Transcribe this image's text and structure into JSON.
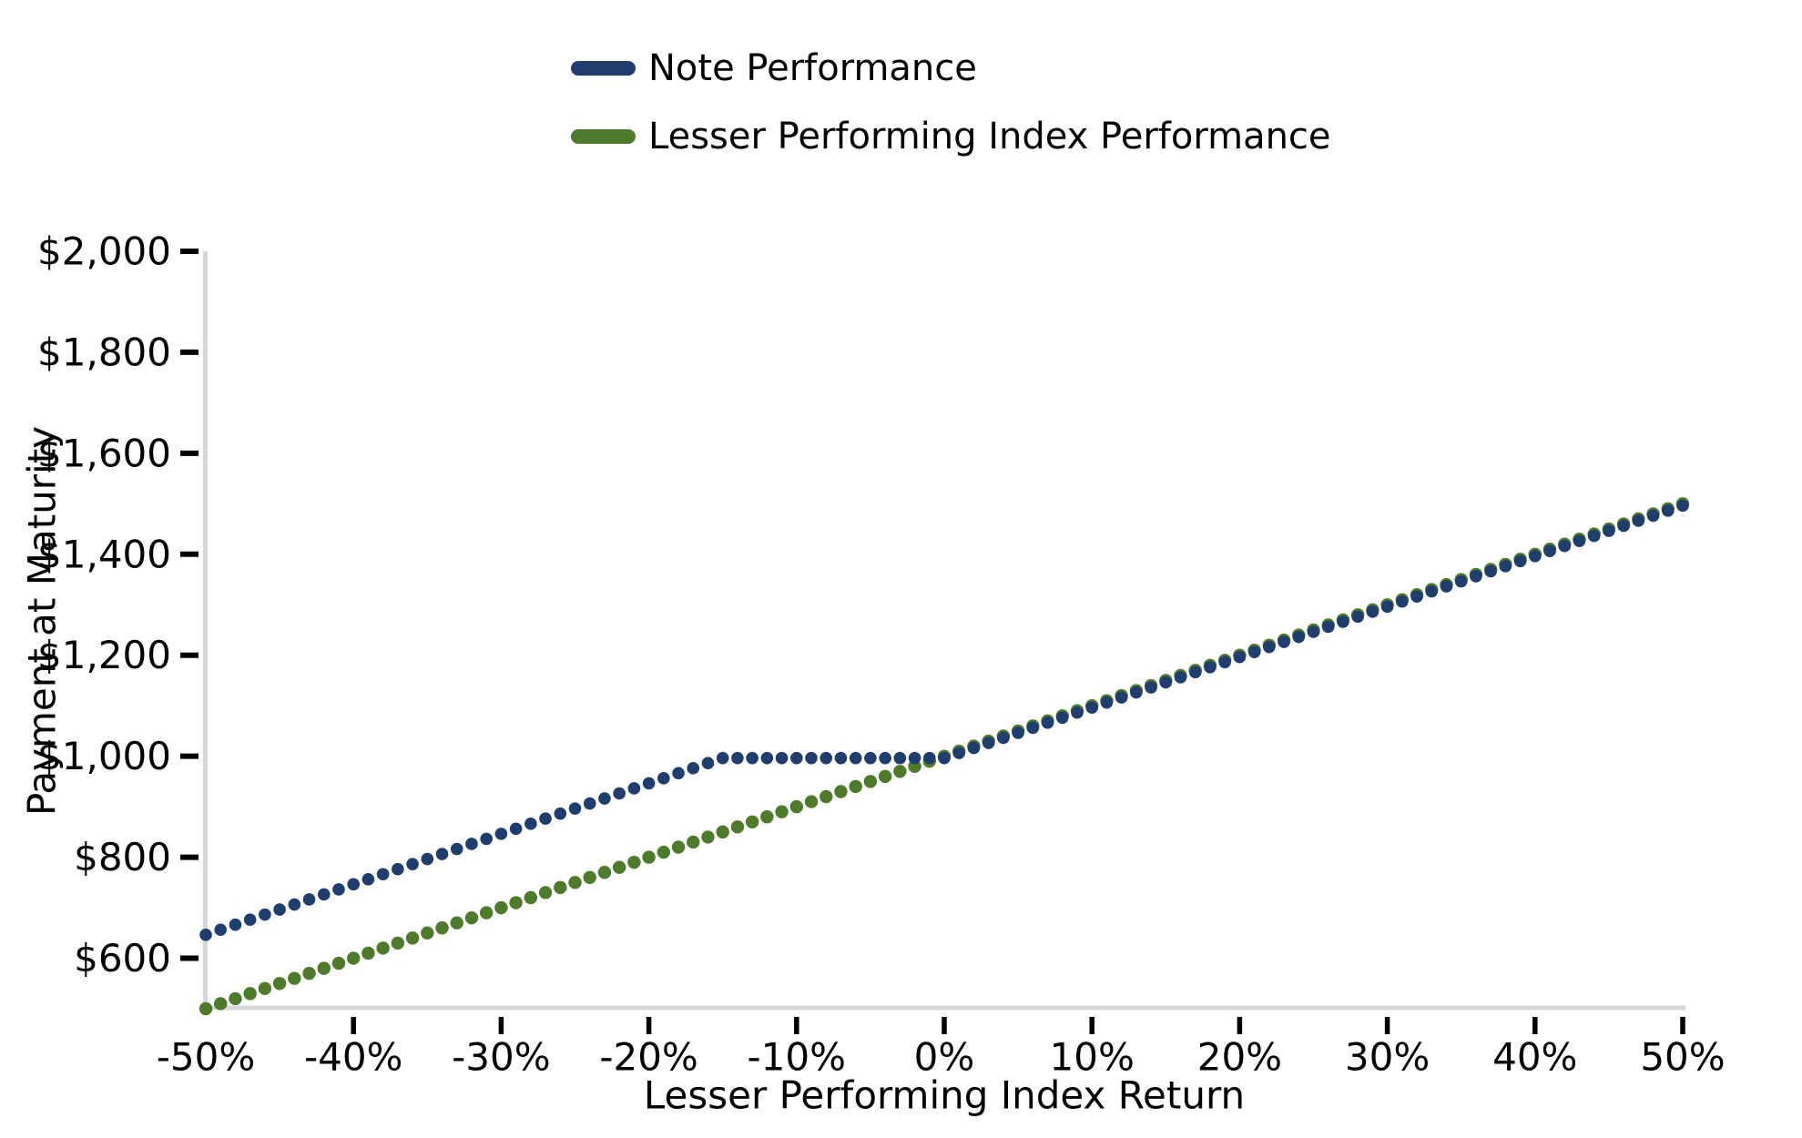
{
  "page": {
    "background": "#ffffff"
  },
  "colors": {
    "axis_spine": "#d5d7da",
    "tick_mark": "#000000",
    "text": "#000000",
    "note_line": "#1f3e6d",
    "index_line": "#4e7b2b"
  },
  "chart_data": {
    "type": "line",
    "title": "",
    "xlabel": "Lesser Performing Index Return",
    "ylabel": "Payment at Maturity",
    "xlim": [
      -50,
      50
    ],
    "ylim": [
      500,
      2000
    ],
    "grid": false,
    "legend_position": "top-center",
    "x_tick_values": [
      -50,
      -40,
      -30,
      -20,
      -10,
      0,
      10,
      20,
      30,
      40,
      50
    ],
    "x_tick_labels": [
      "-50%",
      "-40%",
      "-30%",
      "-20%",
      "-10%",
      "0%",
      "10%",
      "20%",
      "30%",
      "40%",
      "50%"
    ],
    "x_tick_marks": [
      false,
      true,
      true,
      true,
      true,
      true,
      true,
      true,
      true,
      true,
      true
    ],
    "y_tick_values": [
      600,
      800,
      1000,
      1200,
      1400,
      1600,
      1800,
      2000
    ],
    "y_tick_labels": [
      "$600",
      "$800",
      "$1,000",
      "$1,200",
      "$1,400",
      "$1,600",
      "$1,800",
      "$2,000"
    ],
    "sample_step_pct": 1,
    "marker_style": "round-dot",
    "series": [
      {
        "name": "Note Performance",
        "color": "#1f3e6d",
        "key_points": [
          [
            -50,
            650
          ],
          [
            -15,
            1000
          ],
          [
            0,
            1000
          ],
          [
            50,
            1500
          ]
        ]
      },
      {
        "name": "Lesser Performing Index Performance",
        "color": "#4e7b2b",
        "key_points": [
          [
            -50,
            500
          ],
          [
            50,
            1500
          ]
        ]
      }
    ]
  }
}
